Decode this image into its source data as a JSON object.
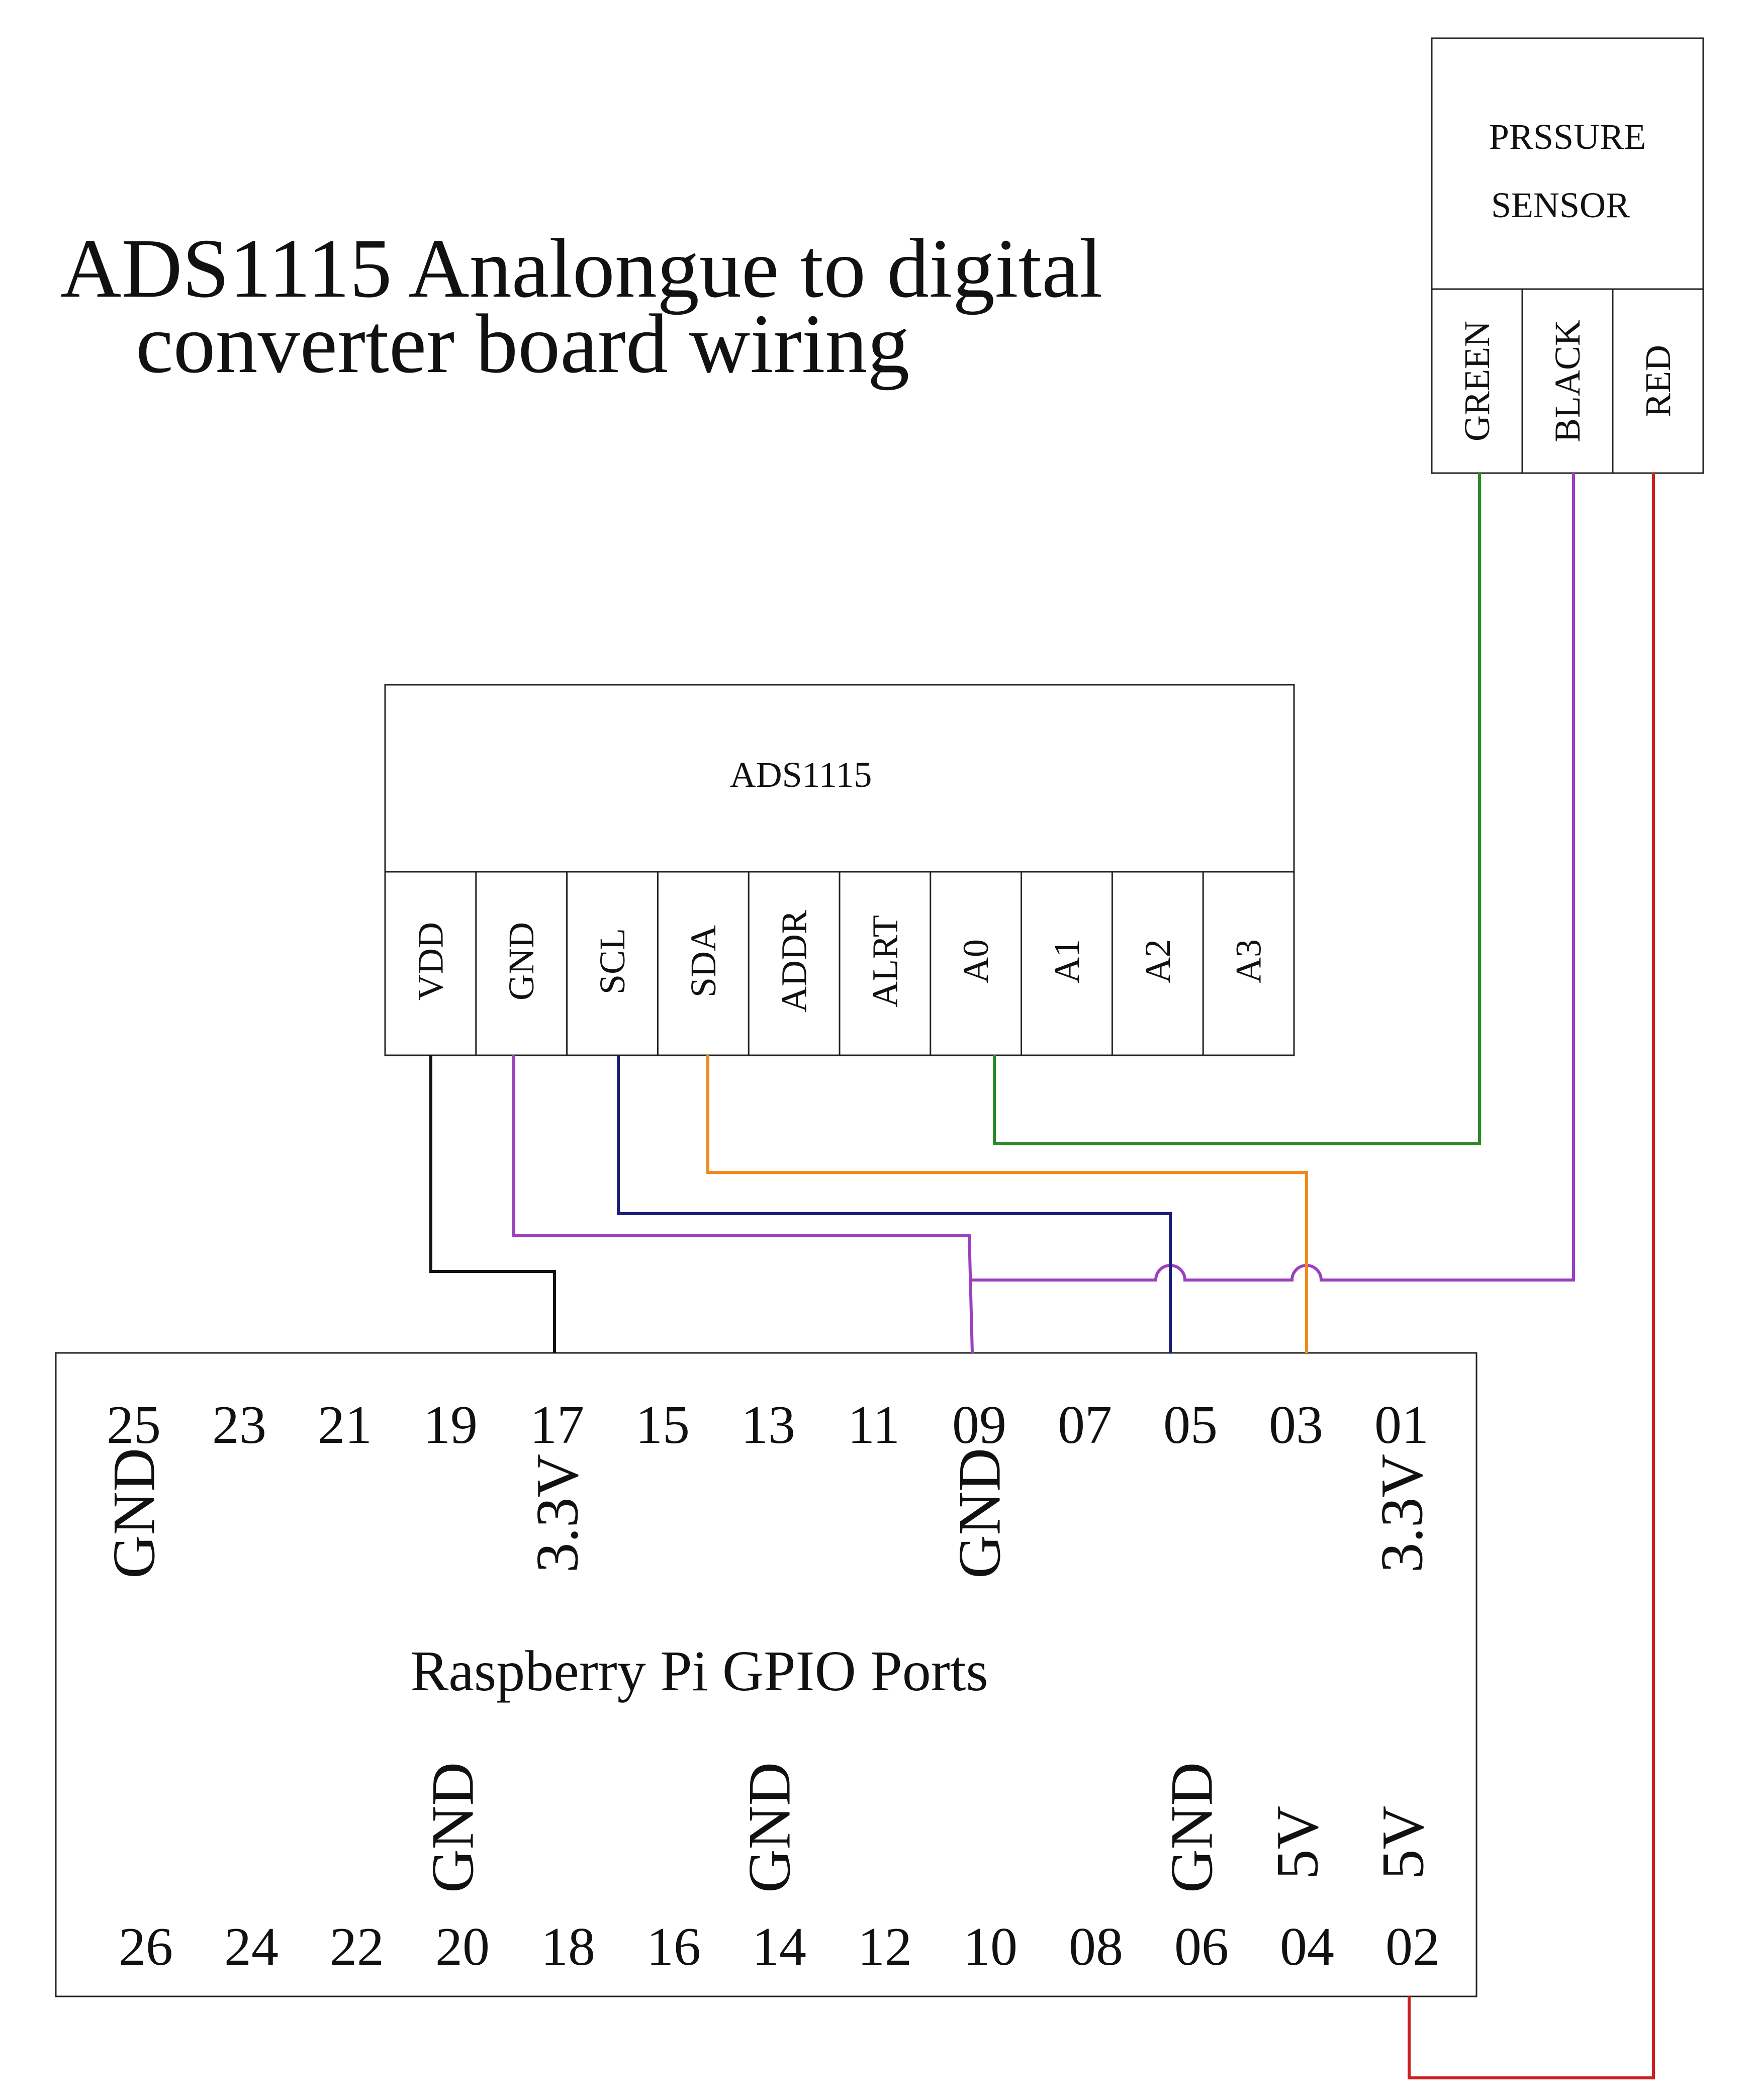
{
  "title": {
    "line1": "ADS1115 Analongue to digital",
    "line2": "converter board wiring"
  },
  "sensor": {
    "label_line1": "PRSSURE",
    "label_line2": "SENSOR",
    "pins": [
      "GREEN",
      "BLACK",
      "RED"
    ]
  },
  "adc": {
    "label": "ADS1115",
    "pins": [
      "VDD",
      "GND",
      "SCL",
      "SDA",
      "ADDR",
      "ALRT",
      "A0",
      "A1",
      "A2",
      "A3"
    ]
  },
  "gpio": {
    "title": "Raspberry Pi GPIO Ports",
    "top_pins": [
      "25",
      "23",
      "21",
      "19",
      "17",
      "15",
      "13",
      "11",
      "09",
      "07",
      "05",
      "03",
      "01"
    ],
    "bottom_pins": [
      "26",
      "24",
      "22",
      "20",
      "18",
      "16",
      "14",
      "12",
      "10",
      "08",
      "06",
      "04",
      "02"
    ],
    "top_functions": [
      {
        "pin": "25",
        "label": "GND"
      },
      {
        "pin": "17",
        "label": "3.3V"
      },
      {
        "pin": "09",
        "label": "GND"
      },
      {
        "pin": "01",
        "label": "3.3V"
      }
    ],
    "bottom_functions": [
      {
        "pin": "20",
        "label": "GND"
      },
      {
        "pin": "14",
        "label": "GND"
      },
      {
        "pin": "06",
        "label": "GND"
      },
      {
        "pin": "04",
        "label": "5V"
      },
      {
        "pin": "02",
        "label": "5V"
      }
    ]
  },
  "wire_colors": {
    "green": "#2a8a2a",
    "purple": "#9a3fc0",
    "red": "#cc1f1f",
    "black": "#111111",
    "navy": "#1c1f7a",
    "orange": "#f08a1c"
  }
}
